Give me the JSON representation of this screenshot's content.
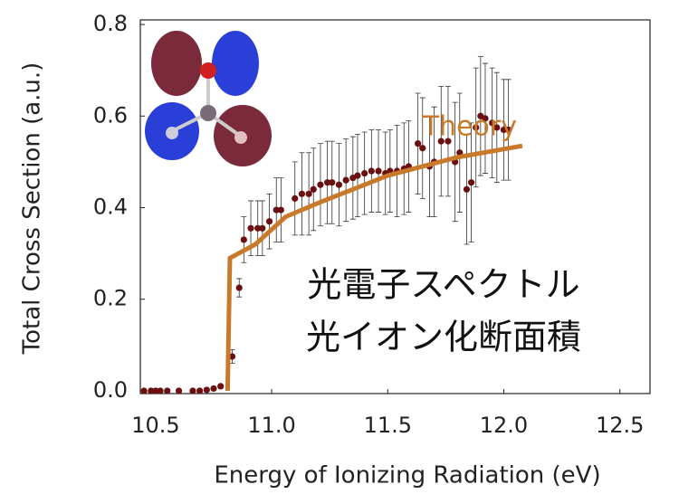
{
  "chart_data": {
    "type": "scatter",
    "xlabel": "Energy of Ionizing Radiation (eV)",
    "ylabel": "Total Cross Section (a.u.)",
    "annotations": [
      "光電子スペクトル",
      "光イオン化断面積"
    ],
    "xlim": [
      10.434,
      12.63
    ],
    "ylim": [
      -0.006,
      0.81
    ],
    "xticks": [
      {
        "value": 10.5,
        "label": "10.5"
      },
      {
        "value": 11,
        "label": "11.0"
      },
      {
        "value": 11.5,
        "label": "11.5"
      },
      {
        "value": 12,
        "label": "12.0"
      },
      {
        "value": 12.5,
        "label": "12.5"
      }
    ],
    "yticks": [
      {
        "value": 0,
        "label": "0.0"
      },
      0.2,
      0.4,
      0.6,
      0.8
    ],
    "series": [
      {
        "color": "#6b1010",
        "x": [
          10.45,
          10.48,
          10.5,
          10.52,
          10.55,
          10.6,
          10.66,
          10.69,
          10.72,
          10.75,
          10.78,
          10.83,
          10.86,
          10.88,
          10.91,
          10.94,
          10.96,
          10.99,
          11.02,
          11.04,
          11.1,
          11.13,
          11.16,
          11.18,
          11.21,
          11.24,
          11.26,
          11.29,
          11.32,
          11.35,
          11.37,
          11.4,
          11.43,
          11.46,
          11.49,
          11.51,
          11.54,
          11.57,
          11.59,
          11.63,
          11.65,
          11.68,
          11.7,
          11.73,
          11.76,
          11.79,
          11.81,
          11.84,
          11.86,
          11.88,
          11.9,
          11.92,
          11.95,
          11.97,
          12.0,
          12.02
        ],
        "values": [
          0,
          0,
          0,
          0,
          0,
          0,
          0,
          0,
          0.002,
          0.005,
          0.01,
          0.075,
          0.225,
          0.33,
          0.355,
          0.355,
          0.355,
          0.37,
          0.395,
          0.395,
          0.42,
          0.43,
          0.43,
          0.44,
          0.45,
          0.455,
          0.455,
          0.45,
          0.46,
          0.465,
          0.47,
          0.475,
          0.48,
          0.48,
          0.475,
          0.48,
          0.48,
          0.485,
          0.49,
          0.54,
          0.53,
          0.49,
          0.5,
          0.545,
          0.545,
          0.5,
          0.52,
          0.44,
          0.455,
          0.575,
          0.6,
          0.595,
          0.585,
          0.575,
          0.57,
          0.57
        ],
        "errors": [
          0,
          0,
          0,
          0,
          0,
          0,
          0,
          0,
          0,
          0,
          0,
          0.015,
          0.02,
          0.05,
          0.06,
          0.06,
          0.06,
          0.06,
          0.07,
          0.07,
          0.08,
          0.09,
          0.09,
          0.09,
          0.09,
          0.09,
          0.09,
          0.09,
          0.09,
          0.09,
          0.09,
          0.09,
          0.09,
          0.09,
          0.09,
          0.09,
          0.1,
          0.1,
          0.1,
          0.11,
          0.11,
          0.11,
          0.12,
          0.12,
          0.12,
          0.13,
          0.13,
          0.12,
          0.13,
          0.13,
          0.13,
          0.12,
          0.12,
          0.12,
          0.11,
          0.11
        ]
      },
      {
        "name": "Theory",
        "type": "line",
        "color": "#c87a2a",
        "x": [
          10.81,
          10.82,
          10.93,
          11.06,
          11.2,
          11.5,
          11.8,
          12.08
        ],
        "values": [
          0,
          0.29,
          0.32,
          0.38,
          0.41,
          0.47,
          0.51,
          0.535
        ]
      }
    ]
  }
}
